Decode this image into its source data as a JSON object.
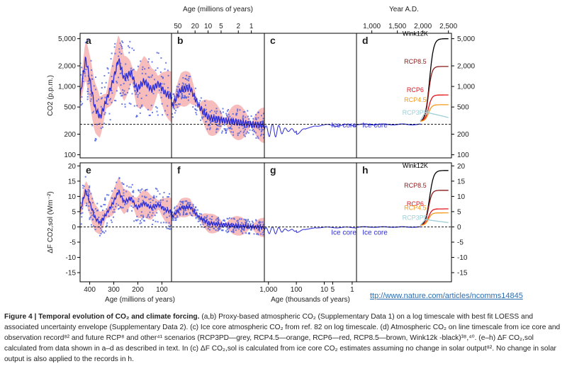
{
  "chart_data": {
    "type": "line",
    "top_axes": {
      "age_my": {
        "label": "Age (millions of years)",
        "ticks": [
          "50",
          "20",
          "10",
          "5",
          "2",
          "1"
        ]
      },
      "year_ad": {
        "label": "Year A.D.",
        "ticks": [
          "1,000",
          "1,500",
          "2,000",
          "2,500"
        ]
      }
    },
    "bottom_axes": {
      "age_my": {
        "label": "Age (millions of years)",
        "ticks": [
          "400",
          "300",
          "200",
          "100"
        ]
      },
      "age_ky": {
        "label": "Age (thousands of years)",
        "ticks": [
          "1,000",
          "100",
          "10",
          "5",
          "1"
        ]
      }
    },
    "top_row": {
      "ylabel": "CO2 (p.p.m.)",
      "scale": "log",
      "ylim": [
        90,
        6000
      ],
      "left_ticks": [
        "5,000",
        "2,000",
        "1,000",
        "500",
        "200",
        "100"
      ],
      "right_ticks": [
        "5,000",
        "2,000",
        "1,000",
        "500",
        "200",
        "100"
      ],
      "reference": 280,
      "panels": [
        "a",
        "b",
        "c",
        "d"
      ]
    },
    "bottom_row": {
      "ylabel": "ΔF CO2,sol (Wm⁻²)",
      "ylim": [
        -18,
        21
      ],
      "left_ticks": [
        "20",
        "15",
        "10",
        "5",
        "0",
        "-5",
        "-10",
        "-15"
      ],
      "right_ticks": [
        "20",
        "15",
        "10",
        "5",
        "0",
        "-5",
        "-10",
        "-15"
      ],
      "reference": 0,
      "panels": [
        "e",
        "f",
        "g",
        "h"
      ]
    },
    "annotations": {
      "ice_core_c": "Ice core",
      "ice_core_d": "Ice core",
      "ice_core_g": "Ice core",
      "ice_core_h": "Ice core"
    },
    "scenarios": [
      {
        "name": "Wink12K",
        "color": "#000000",
        "co2_2500": 5000,
        "forcing_2500": 18.5
      },
      {
        "name": "RCP8.5",
        "color": "#8b1a1a",
        "co2_2500": 1960,
        "forcing_2500": 12.0
      },
      {
        "name": "RCP6",
        "color": "#e3121b",
        "co2_2500": 750,
        "forcing_2500": 5.9
      },
      {
        "name": "RCP4.5",
        "color": "#f59a1b",
        "co2_2500": 540,
        "forcing_2500": 4.6
      },
      {
        "name": "RCP3PD",
        "color": "#9dcfd6",
        "co2_2500": 350,
        "forcing_2500": 1.4
      }
    ],
    "series_colors": {
      "loess": "#2b2bd6",
      "envelope": "#f4a6a6",
      "proxy_points": "#4a5ee0"
    }
  },
  "url": "ttp://www.nature.com/articles/ncomms14845",
  "caption": {
    "title": "Figure 4 | Temporal evolution of CO₂ and climate forcing.",
    "text": "(a,b) Proxy-based atmospheric CO₂ (Supplementary Data 1) on a log timescale with best fit LOESS and associated uncertainty envelope (Supplementary Data 2). (c) Ice core atmospheric CO₂ from ref. 82 on log timescale. (d) Atmospheric CO₂ on line timescale from ice core and observation record⁸² and future RCP⁸ and other⁴¹ scenarios (RCP3PD—grey, RCP4.5—orange, RCP6—red, RCP8.5—brown, Wink12k -black)³⁸,⁴⁰. (e–h) ΔF CO₂,sol calculated from data shown in a–d as described in text. In (c) ΔF CO₂,sol is calculated from ice core CO₂ estimates assuming no change in solar output⁸². No change in solar output is also applied to the records in h."
  }
}
